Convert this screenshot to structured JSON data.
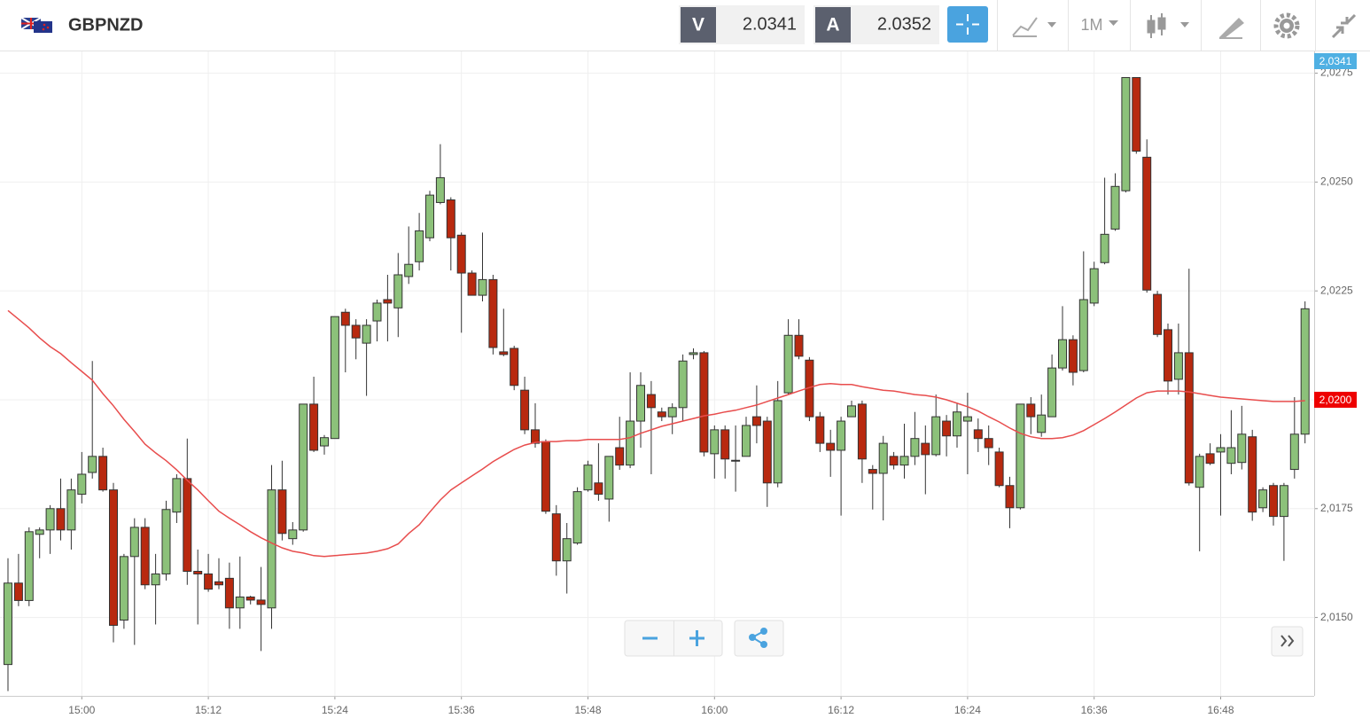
{
  "header": {
    "symbol": "GBPNZD",
    "sell_label": "V",
    "sell_price": 2.0341,
    "buy_label": "A",
    "buy_price": 2.0352,
    "timeframe": "1M"
  },
  "chart_data": {
    "type": "candlestick",
    "categories": [
      null,
      null,
      null,
      null,
      null,
      null,
      null,
      "15:00",
      null,
      null,
      null,
      null,
      null,
      null,
      null,
      null,
      null,
      null,
      null,
      "15:12",
      null,
      null,
      null,
      null,
      null,
      null,
      null,
      null,
      null,
      null,
      null,
      "15:24",
      null,
      null,
      null,
      null,
      null,
      null,
      null,
      null,
      null,
      null,
      null,
      "15:36",
      null,
      null,
      null,
      null,
      null,
      null,
      null,
      null,
      null,
      null,
      null,
      "15:48",
      null,
      null,
      null,
      null,
      null,
      null,
      null,
      null,
      null,
      null,
      null,
      "16:00",
      null,
      null,
      null,
      null,
      null,
      null,
      null,
      null,
      null,
      null,
      null,
      "16:12",
      null,
      null,
      null,
      null,
      null,
      null,
      null,
      null,
      null,
      null,
      null,
      "16:24",
      null,
      null,
      null,
      null,
      null,
      null,
      null,
      null,
      null,
      null,
      null,
      "16:36",
      null,
      null,
      null,
      null,
      null,
      null,
      null,
      null,
      null,
      null,
      null,
      "16:48",
      null,
      null,
      null,
      null,
      null,
      null,
      null,
      null
    ],
    "open": [
      2.01392,
      2.01579,
      2.01539,
      2.01691,
      2.01701,
      2.0175,
      2.01701,
      2.01783,
      2.01833,
      2.0187,
      2.01793,
      2.01494,
      2.0164,
      2.01707,
      2.01575,
      2.016,
      2.01742,
      2.01819,
      2.01606,
      2.016,
      2.01582,
      2.0159,
      2.01522,
      2.01547,
      2.0154,
      2.01522,
      2.01793,
      2.01681,
      2.01701,
      2.0199,
      2.01894,
      2.01911,
      2.02201,
      2.02171,
      2.0213,
      2.02181,
      2.0223,
      2.02211,
      2.02283,
      2.02317,
      2.02372,
      2.02453,
      2.02459,
      2.02378,
      2.02291,
      2.0224,
      2.02276,
      2.0211,
      2.02118,
      2.02022,
      2.01931,
      2.01904,
      2.01738,
      2.0163,
      2.01671,
      2.01793,
      2.01809,
      2.01772,
      2.0189,
      2.0185,
      2.01951,
      2.02012,
      2.01972,
      2.01961,
      2.01982,
      2.02104,
      2.02108,
      2.01876,
      2.01931,
      2.0186,
      2.0187,
      2.01961,
      2.01951,
      2.01809,
      2.02016,
      2.02148,
      2.02091,
      2.01961,
      2.019,
      2.01884,
      2.01961,
      2.0199,
      2.0184,
      2.01831,
      2.0187,
      2.0185,
      2.0187,
      2.019,
      2.01874,
      2.01951,
      2.01917,
      2.01951,
      2.01931,
      2.01911,
      2.0188,
      2.01803,
      2.01752,
      2.0199,
      2.01925,
      2.01961,
      2.02073,
      2.02138,
      2.02067,
      2.02222,
      2.02315,
      2.02392,
      2.0248,
      2.0274,
      2.02557,
      2.02242,
      2.02161,
      2.02047,
      2.02108,
      2.01799,
      2.01876,
      2.0188,
      2.01854,
      2.01856,
      2.01915,
      2.01752,
      2.01803,
      2.01732,
      2.0184,
      2.01921
    ],
    "high": [
      2.01636,
      2.01646,
      2.01707,
      2.01707,
      2.01758,
      2.01819,
      2.01819,
      2.0188,
      2.02089,
      2.0189,
      2.01809,
      2.01646,
      2.01728,
      2.01728,
      2.01646,
      2.01768,
      2.01829,
      2.01911,
      2.01656,
      2.01646,
      2.01636,
      2.01626,
      2.0164,
      2.0155,
      2.01616,
      2.0185,
      2.0186,
      2.01719,
      2.0199,
      2.02053,
      2.01919,
      2.02191,
      2.02209,
      2.02185,
      2.02185,
      2.0223,
      2.02287,
      2.02337,
      2.02398,
      2.02429,
      2.0248,
      2.02587,
      2.02465,
      2.02384,
      2.02297,
      2.02384,
      2.02287,
      2.02209,
      2.02124,
      2.02053,
      2.01992,
      2.01909,
      2.01758,
      2.01717,
      2.01799,
      2.0186,
      2.019,
      2.0187,
      2.01961,
      2.02063,
      2.02063,
      2.02043,
      2.01982,
      2.01992,
      2.02104,
      2.02118,
      2.02112,
      2.01941,
      2.01941,
      2.01941,
      2.01961,
      2.02033,
      2.01961,
      2.02043,
      2.02185,
      2.02185,
      2.02098,
      2.01972,
      2.01931,
      2.01961,
      2.01998,
      2.01998,
      2.0185,
      2.01917,
      2.0188,
      2.01945,
      2.01972,
      2.01941,
      2.02012,
      2.01965,
      2.01992,
      2.02016,
      2.01957,
      2.01941,
      2.0189,
      2.01823,
      2.0199,
      2.02006,
      2.02012,
      2.02104,
      2.02215,
      2.02148,
      2.02341,
      2.02317,
      2.0251,
      2.0252,
      2.0274,
      2.0274,
      2.02598,
      2.0225,
      2.02175,
      2.02175,
      2.02301,
      2.01876,
      2.019,
      2.01921,
      2.01976,
      2.01986,
      2.01931,
      2.01799,
      2.01809,
      2.01809,
      2.02006,
      2.02226
    ],
    "low": [
      2.01331,
      2.01526,
      2.01526,
      2.01636,
      2.01646,
      2.01677,
      2.01656,
      2.01762,
      2.01819,
      2.01789,
      2.01443,
      2.01474,
      2.01437,
      2.01565,
      2.01484,
      2.01585,
      2.01717,
      2.01575,
      2.01484,
      2.01559,
      2.01565,
      2.01474,
      2.01474,
      2.0153,
      2.01423,
      2.01474,
      2.01677,
      2.01667,
      2.01697,
      2.0188,
      2.01874,
      2.01911,
      2.02063,
      2.02093,
      2.02009,
      2.02134,
      2.02134,
      2.02144,
      2.02266,
      2.02297,
      2.02364,
      2.02449,
      2.02297,
      2.02154,
      2.0224,
      2.02226,
      2.02104,
      2.021,
      2.02022,
      2.01921,
      2.0189,
      2.01738,
      2.01596,
      2.01555,
      2.01667,
      2.01789,
      2.01768,
      2.0172,
      2.01839,
      2.01843,
      2.0189,
      2.01829,
      2.01951,
      2.01921,
      2.01951,
      2.02093,
      2.0187,
      2.01819,
      2.01819,
      2.01789,
      2.0187,
      2.019,
      2.01754,
      2.01799,
      2.02012,
      2.02093,
      2.01951,
      2.0188,
      2.01823,
      2.01734,
      2.01961,
      2.01809,
      2.01748,
      2.01723,
      2.0184,
      2.01819,
      2.0185,
      2.01783,
      2.0187,
      2.0187,
      2.0189,
      2.01829,
      2.0188,
      2.0185,
      2.01799,
      2.01705,
      2.01748,
      2.01921,
      2.01915,
      2.01961,
      2.02067,
      2.02033,
      2.02063,
      2.02215,
      2.02311,
      2.02388,
      2.02476,
      2.02565,
      2.02246,
      2.02144,
      2.02012,
      2.02012,
      2.01803,
      2.01652,
      2.0185,
      2.01734,
      2.01829,
      2.0184,
      2.01722,
      2.01742,
      2.01711,
      2.0163,
      2.01819,
      2.019
    ],
    "close": [
      2.01579,
      2.01539,
      2.01697,
      2.01701,
      2.0175,
      2.01701,
      2.01793,
      2.01829,
      2.0187,
      2.01793,
      2.01482,
      2.0164,
      2.01707,
      2.01575,
      2.016,
      2.01748,
      2.01819,
      2.01606,
      2.016,
      2.01565,
      2.01575,
      2.01522,
      2.01547,
      2.0154,
      2.0153,
      2.01793,
      2.01693,
      2.01701,
      2.0199,
      2.01884,
      2.01913,
      2.02191,
      2.02171,
      2.02142,
      2.02171,
      2.02222,
      2.02222,
      2.02287,
      2.02311,
      2.02388,
      2.0247,
      2.0251,
      2.02372,
      2.02291,
      2.0224,
      2.02276,
      2.0212,
      2.02104,
      2.02033,
      2.01931,
      2.019,
      2.01744,
      2.0163,
      2.01681,
      2.01789,
      2.0185,
      2.01783,
      2.0187,
      2.0185,
      2.01951,
      2.02033,
      2.01982,
      2.01961,
      2.01982,
      2.02089,
      2.02108,
      2.0188,
      2.01931,
      2.01864,
      2.01861,
      2.01941,
      2.01941,
      2.01809,
      2.01998,
      2.02148,
      2.021,
      2.01961,
      2.019,
      2.01884,
      2.01951,
      2.01986,
      2.01864,
      2.01831,
      2.019,
      2.0185,
      2.0187,
      2.01911,
      2.01874,
      2.01961,
      2.01917,
      2.01972,
      2.01961,
      2.01911,
      2.0189,
      2.01803,
      2.01752,
      2.0199,
      2.01961,
      2.01965,
      2.02073,
      2.02138,
      2.02063,
      2.0223,
      2.02301,
      2.0238,
      2.0249,
      2.0274,
      2.02571,
      2.02252,
      2.0215,
      2.02043,
      2.02108,
      2.01809,
      2.0187,
      2.01854,
      2.0189,
      2.0189,
      2.01921,
      2.01742,
      2.01793,
      2.01732,
      2.01803,
      2.01921,
      2.02209
    ],
    "up_color": "#8cc17a",
    "down_color": "#b8290f",
    "overlay": {
      "color": "#e84d4d",
      "values": [
        2.02205,
        2.02185,
        2.02165,
        2.02142,
        2.02122,
        2.02106,
        2.02085,
        2.02065,
        2.02045,
        2.02014,
        2.01986,
        2.01955,
        2.01927,
        2.01898,
        2.01878,
        2.0186,
        2.01839,
        2.01815,
        2.01793,
        2.01768,
        2.01744,
        2.01728,
        2.01713,
        2.01697,
        2.01683,
        2.01671,
        2.0166,
        2.01652,
        2.01648,
        2.01642,
        2.0164,
        2.01642,
        2.01644,
        2.01646,
        2.01648,
        2.01652,
        2.01658,
        2.01669,
        2.01693,
        2.01713,
        2.01742,
        2.0177,
        2.01793,
        2.01809,
        2.01825,
        2.01841,
        2.01858,
        2.01872,
        2.01886,
        2.01896,
        2.01902,
        2.01904,
        2.01904,
        2.01906,
        2.01906,
        2.01909,
        2.01909,
        2.01909,
        2.01909,
        2.01913,
        2.01923,
        2.01931,
        2.01939,
        2.01945,
        2.01951,
        2.01957,
        2.01963,
        2.01967,
        2.01972,
        2.01976,
        2.01982,
        2.01988,
        2.01996,
        2.02004,
        2.02012,
        2.0202,
        2.02028,
        2.02035,
        2.02037,
        2.02035,
        2.02035,
        2.0203,
        2.02026,
        2.02022,
        2.0202,
        2.02016,
        2.02012,
        2.0201,
        2.02006,
        2.02,
        2.01992,
        2.01984,
        2.01974,
        2.01961,
        2.01949,
        2.01935,
        2.01923,
        2.01915,
        2.01911,
        2.01911,
        2.01913,
        2.01919,
        2.01929,
        2.01943,
        2.01957,
        2.01972,
        2.01988,
        2.02004,
        2.02016,
        2.0202,
        2.0202,
        2.0202,
        2.02018,
        2.02014,
        2.0201,
        2.02006,
        2.02004,
        2.02002,
        2.02,
        2.01998,
        2.01996,
        2.01996,
        2.01996,
        2.01998
      ]
    },
    "ylim": [
      2.0132,
      2.028
    ],
    "yticks": [
      {
        "value": 2.015,
        "label": "2,0150"
      },
      {
        "value": 2.0175,
        "label": "2,0175"
      },
      {
        "value": 2.02,
        "label": "2,0200"
      },
      {
        "value": 2.0225,
        "label": "2,0225"
      },
      {
        "value": 2.025,
        "label": "2,0250"
      },
      {
        "value": 2.0275,
        "label": "2,0275"
      }
    ],
    "grid": true,
    "price_tags": [
      {
        "value": 2.0341,
        "label": "2,0341",
        "color": "#4fb0e3"
      },
      {
        "value": 2.02,
        "label": "2,0200",
        "color": "#ee0000"
      }
    ]
  }
}
